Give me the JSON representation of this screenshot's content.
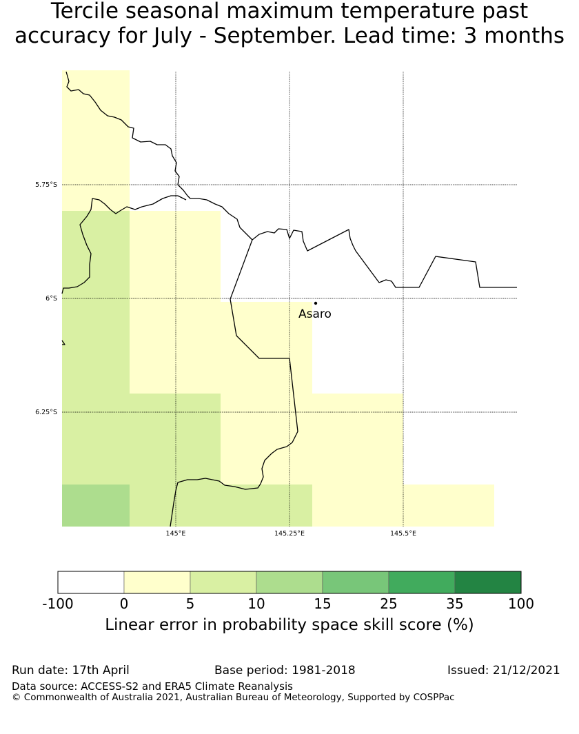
{
  "title": {
    "line1": "Tercile seasonal maximum temperature past",
    "line2": "accuracy for July - September. Lead time: 3 months"
  },
  "map": {
    "lat_labels": [
      "5.75°S",
      "6°S",
      "6.25°S"
    ],
    "lon_labels": [
      "145°E",
      "145.25°E",
      "145.5°E"
    ],
    "place": {
      "name": "Asaro"
    }
  },
  "colorbar": {
    "ticks": [
      "-100",
      "0",
      "5",
      "10",
      "15",
      "25",
      "35",
      "100"
    ],
    "colors": [
      "#ffffff",
      "#ffffcc",
      "#d9f0a3",
      "#addd8e",
      "#78c679",
      "#41ab5d",
      "#238443"
    ],
    "label": "Linear error in probability space skill score (%)"
  },
  "footer": {
    "run_date": "Run date: 17th April",
    "base_period": "Base period: 1981-2018",
    "issued": "Issued: 21/12/2021",
    "data_source": "Data source: ACCESS-S2 and ERA5 Climate Reanalysis",
    "copyright": "© Commonwealth of Australia 2021, Australian Bureau of Meteorology, Supported by COSPPac"
  }
}
